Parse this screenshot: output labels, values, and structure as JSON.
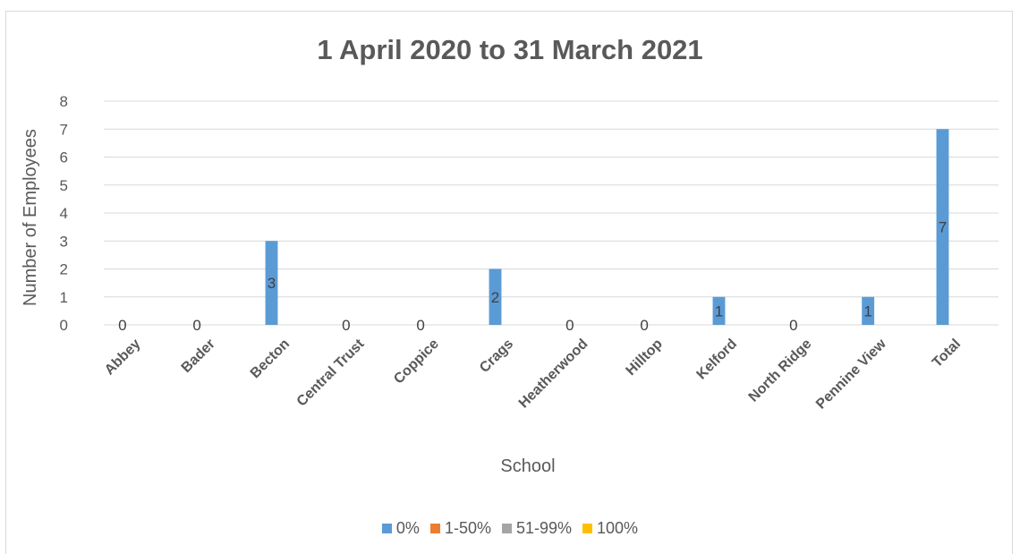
{
  "chart_data": {
    "type": "bar",
    "title": "1 April 2020 to 31 March 2021",
    "xlabel": "School",
    "ylabel": "Number of Employees",
    "ylim": [
      0,
      8
    ],
    "yticks": [
      0,
      1,
      2,
      3,
      4,
      5,
      6,
      7,
      8
    ],
    "grid": true,
    "legend_position": "bottom",
    "categories": [
      "Abbey",
      "Bader",
      "Becton",
      "Central Trust",
      "Coppice",
      "Crags",
      "Heatherwood",
      "Hilltop",
      "Kelford",
      "North Ridge",
      "Pennine View",
      "Total"
    ],
    "series": [
      {
        "name": "0%",
        "color": "#5b9bd5",
        "values": [
          0,
          0,
          3,
          0,
          0,
          2,
          0,
          0,
          1,
          0,
          1,
          7
        ]
      },
      {
        "name": "1-50%",
        "color": "#ed7d31",
        "values": [
          0,
          0,
          0,
          0,
          0,
          0,
          0,
          0,
          0,
          0,
          0,
          0
        ]
      },
      {
        "name": "51-99%",
        "color": "#a5a5a5",
        "values": [
          0,
          0,
          0,
          0,
          0,
          0,
          0,
          0,
          0,
          0,
          0,
          0
        ]
      },
      {
        "name": "100%",
        "color": "#ffc000",
        "values": [
          0,
          0,
          0,
          0,
          0,
          0,
          0,
          0,
          0,
          0,
          0,
          0
        ]
      }
    ],
    "data_labels": [
      "0",
      "0",
      "3",
      "0",
      "0",
      "2",
      "0",
      "0",
      "1",
      "0",
      "1",
      "7"
    ]
  }
}
